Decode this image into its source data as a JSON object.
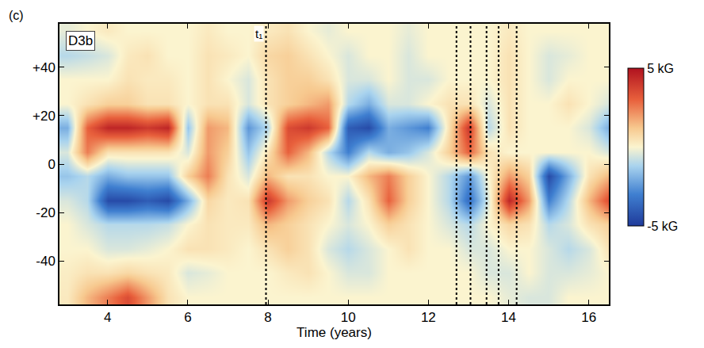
{
  "chart_data": {
    "type": "heatmap",
    "panel_label": "(c)",
    "title": "D3b",
    "x_label": "Time (years)",
    "x": [
      3.0,
      3.5,
      4.0,
      4.5,
      5.0,
      5.5,
      6.0,
      6.5,
      7.0,
      7.5,
      8.0,
      8.5,
      9.0,
      9.5,
      10.0,
      10.5,
      11.0,
      11.5,
      12.0,
      12.5,
      13.0,
      13.5,
      14.0,
      14.5,
      15.0,
      15.5,
      16.0,
      16.5
    ],
    "y": [
      -55,
      -45,
      -35,
      -25,
      -15,
      -5,
      5,
      15,
      25,
      35,
      45,
      55
    ],
    "cells": [
      [
        0.3,
        1.5,
        2.5,
        3.5,
        2,
        0.5,
        0,
        0,
        0,
        0,
        0,
        0,
        0,
        0,
        0,
        0,
        0,
        0,
        0,
        0,
        0,
        0,
        -0.3,
        -0.5,
        -0.5,
        0,
        0,
        0
      ],
      [
        0.2,
        0.5,
        0.5,
        0.8,
        0.5,
        0.3,
        -0.5,
        -0.3,
        0,
        0,
        0,
        0.3,
        0.5,
        0,
        -0.5,
        -0.5,
        0,
        0,
        0,
        0,
        0,
        -0.5,
        -0.5,
        0,
        -0.5,
        -0.5,
        -0.3,
        0
      ],
      [
        0,
        0,
        -0.5,
        -0.5,
        -0.3,
        0,
        0.5,
        0.5,
        0.3,
        0,
        0.5,
        1,
        0.5,
        -0.5,
        -1,
        -0.5,
        0,
        0.5,
        0,
        0,
        -0.5,
        -0.5,
        0,
        0,
        -0.5,
        -1,
        -0.5,
        0.5
      ],
      [
        0,
        -0.5,
        -1,
        -1,
        -1,
        -0.8,
        0,
        0.5,
        0.3,
        0.3,
        1.5,
        1,
        0.5,
        0,
        -0.5,
        0,
        1,
        0.5,
        0,
        -0.5,
        -1,
        0,
        0.8,
        0.5,
        -1,
        -0.5,
        0.5,
        1
      ],
      [
        -0.5,
        -1,
        -4.5,
        -4.5,
        -4,
        -4.5,
        -2,
        0.8,
        0.3,
        0.5,
        4,
        2,
        1,
        0.5,
        -1,
        0.5,
        3,
        1,
        0,
        -1,
        -3.5,
        -0.5,
        4.5,
        2,
        -3,
        -1,
        1.5,
        3.5
      ],
      [
        -1.5,
        -1,
        -2,
        -1.5,
        -1.5,
        -1.5,
        1,
        2.5,
        0.5,
        -0.5,
        1.5,
        0.5,
        0.5,
        0,
        0,
        1.5,
        2.5,
        1,
        0,
        -1,
        -2.5,
        0,
        2,
        1,
        -4.5,
        -2,
        0.5,
        1.5
      ],
      [
        -0.5,
        2.5,
        0.5,
        0.5,
        0.5,
        0.5,
        -0.5,
        2,
        1,
        -1.5,
        0.5,
        3,
        1.5,
        -1,
        -3,
        -1,
        -2,
        -1.5,
        -0.5,
        1,
        3,
        0.5,
        0,
        0,
        0,
        0,
        0,
        -0.5
      ],
      [
        -2,
        3,
        4.5,
        4.5,
        4,
        4.5,
        -1.5,
        2,
        1.5,
        -2.5,
        -1,
        3.5,
        4,
        3,
        -4,
        -4.5,
        -2,
        -2.5,
        -3,
        0.5,
        4,
        -1,
        0.5,
        0,
        0,
        0,
        -0.5,
        -2
      ],
      [
        0,
        0.5,
        1,
        1,
        0.5,
        0.5,
        0,
        0.5,
        0.5,
        -0.5,
        0.5,
        1,
        1.5,
        2,
        -1,
        -2,
        -0.5,
        -0.5,
        0,
        0.5,
        0.5,
        -0.5,
        0.5,
        0,
        0,
        0.5,
        0,
        -0.5
      ],
      [
        0,
        0,
        0,
        0.5,
        0.3,
        0.3,
        0,
        0.5,
        0,
        -0.5,
        0.5,
        1,
        1,
        0.5,
        -0.5,
        -0.5,
        0,
        -0.5,
        -0.5,
        0,
        0,
        0,
        0.5,
        0,
        -0.5,
        0,
        0,
        0
      ],
      [
        -1,
        -0.8,
        -0.5,
        0.3,
        0.5,
        0,
        0,
        0.5,
        0.3,
        0,
        0.8,
        1,
        0.5,
        0,
        -0.5,
        0,
        0,
        -0.5,
        0,
        0,
        0,
        0,
        0.5,
        0,
        -0.5,
        -0.3,
        0,
        0
      ],
      [
        -0.3,
        0,
        0.3,
        0,
        0,
        0,
        0,
        0.3,
        0,
        0,
        0.3,
        0.5,
        0,
        -0.3,
        0,
        0,
        0,
        -0.3,
        0,
        0,
        0,
        0,
        0.3,
        0,
        0,
        0,
        0,
        0
      ]
    ],
    "xlim": [
      2.8,
      16.5
    ],
    "xticks": [
      4,
      6,
      8,
      10,
      12,
      14,
      16
    ],
    "ylim": [
      -58,
      58
    ],
    "yticks": [
      {
        "value": 40,
        "label": "+40"
      },
      {
        "value": 20,
        "label": "+20"
      },
      0,
      -20,
      -40
    ],
    "colorbar_range": [
      -5,
      5
    ],
    "colorbar_ticks": [
      {
        "value": 5,
        "label": "5 kG"
      },
      {
        "value": -5,
        "label": "-5 kG"
      }
    ],
    "vertical_lines": [
      7.95,
      12.7,
      13.05,
      13.45,
      13.75,
      14.2
    ],
    "annotations": [
      {
        "text": "t₁",
        "x": 7.95
      }
    ]
  }
}
